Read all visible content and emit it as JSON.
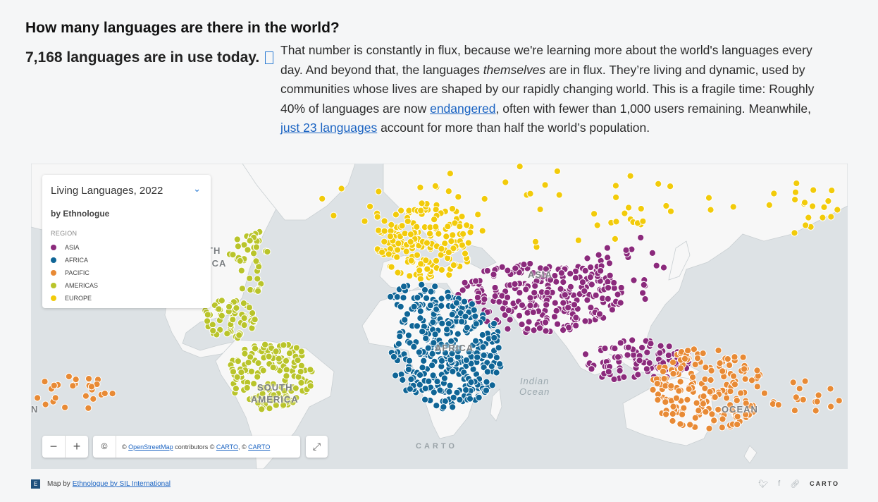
{
  "heading": "How many languages are there in the world?",
  "subheading": "7,168 languages are in use today.",
  "paragraph": {
    "part1": "That number is constantly in flux, because we're learning more about the world's languages every day. And beyond that, the languages ",
    "italic": "themselves",
    "part2": " are in flux. They’re living and dynamic, used by communities whose lives are shaped by our rapidly changing world. This is a fragile time: Roughly 40% of languages are now ",
    "link1": "endangered",
    "part3": ", often with fewer than 1,000 users remaining. Meanwhile, ",
    "link2": "just 23 languages",
    "part4": " account for more than half the world’s population."
  },
  "legend": {
    "title": "Living Languages, 2022",
    "subtitle": "by Ethnologue",
    "region_label": "REGION",
    "items": [
      {
        "label": "ASIA",
        "color": "#8b2a7c"
      },
      {
        "label": "AFRICA",
        "color": "#0f6596"
      },
      {
        "label": "PACIFIC",
        "color": "#e88a35"
      },
      {
        "label": "AMERICAS",
        "color": "#b9c42a"
      },
      {
        "label": "EUROPE",
        "color": "#f2cb0a"
      }
    ]
  },
  "map_labels": {
    "asia": "ASIA",
    "africa": "AFRICA",
    "south_america_1": "SOUTH",
    "south_america_2": "AMERICA",
    "north_fragment_1": "TH",
    "north_fragment_2": "ICA",
    "ocean_left": "N",
    "ocean_right": "OCEAN",
    "indian_ocean_1": "Indian",
    "indian_ocean_2": "Ocean"
  },
  "controls": {
    "zoom_out": "−",
    "zoom_in": "+",
    "copyright_symbol": "©",
    "attribution_prefix": "© ",
    "osm_link": "OpenStreetMap",
    "attribution_mid": " contributors © ",
    "carto_link1": "CARTO",
    "attribution_sep": ", © ",
    "carto_link2": "CARTO",
    "fullscreen": "⤢",
    "watermark": "CARTO"
  },
  "footer": {
    "map_by": "Map by",
    "link": "Ethnologue by SIL International",
    "brand": "CARTO"
  }
}
